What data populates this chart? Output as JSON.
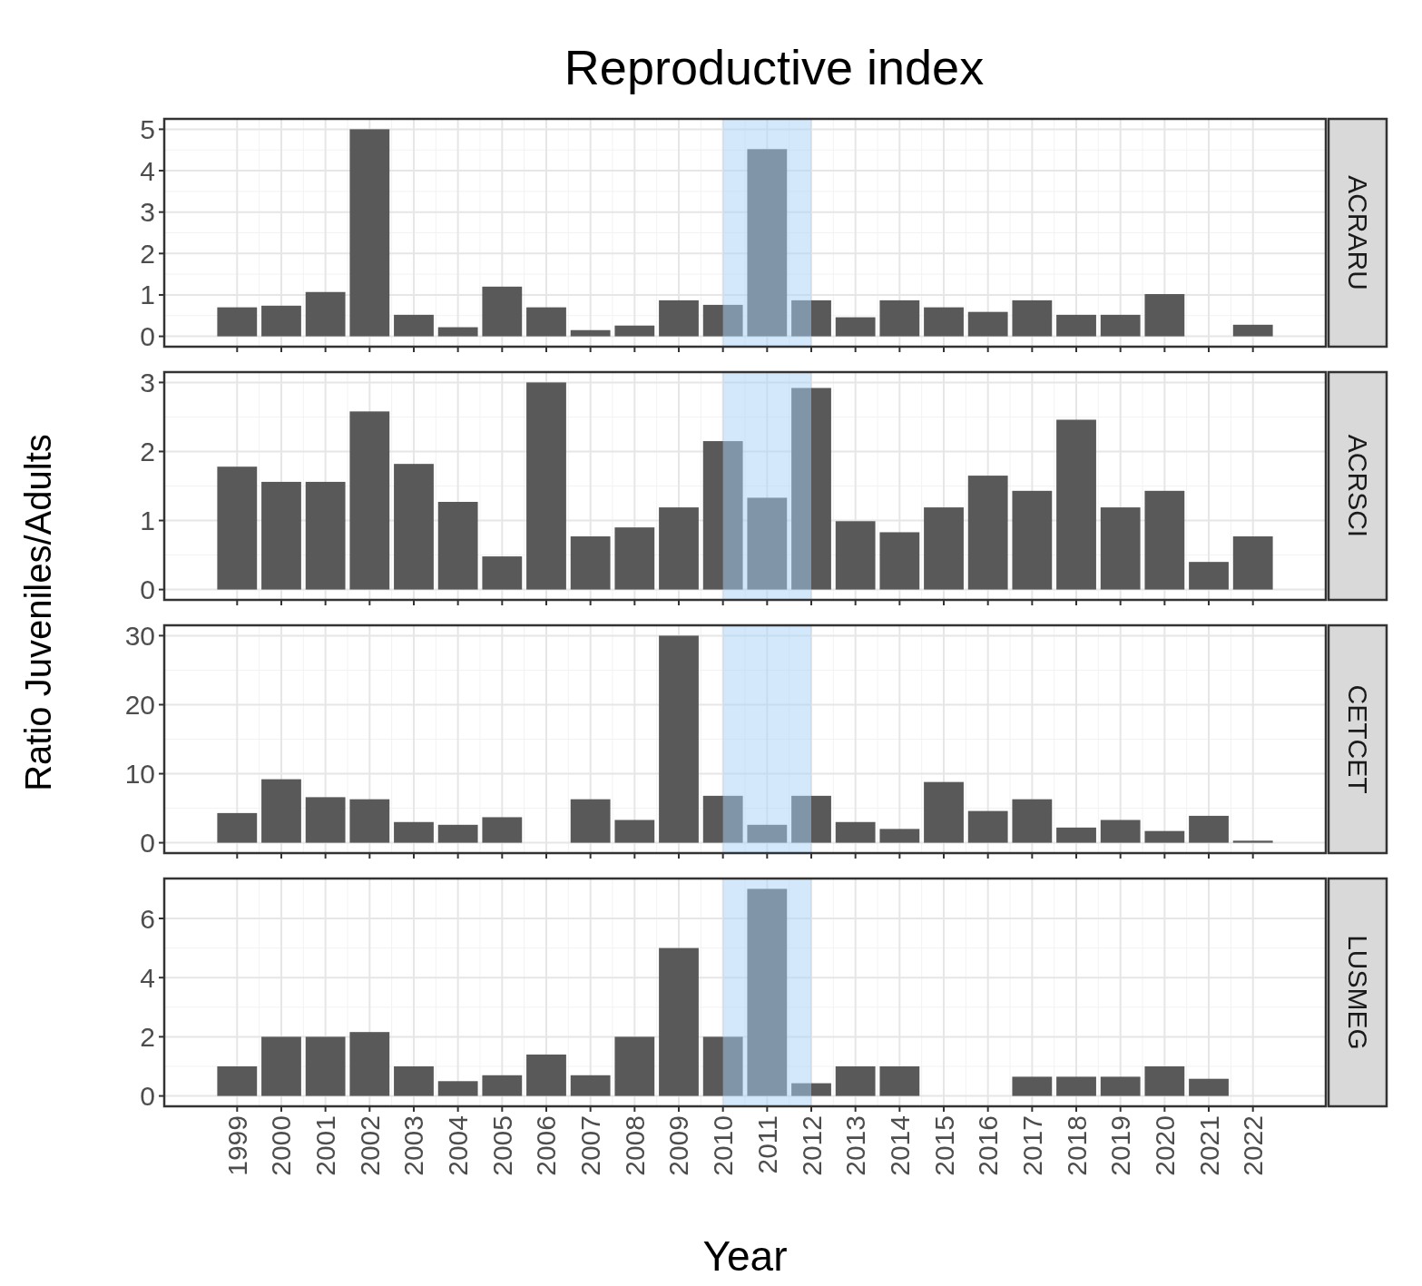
{
  "chart_data": [
    {
      "type": "bar",
      "title": "Reproductive index",
      "y2label": "ACRARU",
      "ylabel": "Ratio Juveniles/Adults",
      "x": [
        1999,
        2000,
        2001,
        2002,
        2003,
        2004,
        2005,
        2006,
        2007,
        2008,
        2009,
        2010,
        2011,
        2012,
        2013,
        2014,
        2015,
        2016,
        2017,
        2018,
        2019,
        2020,
        2022
      ],
      "values": [
        0.7,
        0.74,
        1.07,
        5.0,
        0.52,
        0.22,
        1.2,
        0.7,
        0.15,
        0.26,
        0.87,
        0.76,
        4.52,
        0.87,
        0.46,
        0.87,
        0.7,
        0.59,
        0.87,
        0.52,
        0.52,
        1.02,
        0.28
      ],
      "color": "#595959",
      "xlim": [
        1997.35,
        2023.65
      ],
      "xticks": [
        1999,
        2000,
        2001,
        2002,
        2003,
        2004,
        2005,
        2006,
        2007,
        2008,
        2009,
        2010,
        2011,
        2012,
        2013,
        2014,
        2015,
        2016,
        2017,
        2018,
        2019,
        2020,
        2021,
        2022
      ],
      "ylim": [
        -0.25,
        5.25
      ],
      "yticks": [
        0,
        1,
        2,
        3,
        4,
        5
      ],
      "grid": true,
      "tick_labels": "y",
      "bands": [
        {
          "axis": "x",
          "from": 2010,
          "to": 2012,
          "color": "#a9d1f7"
        }
      ]
    },
    {
      "type": "bar",
      "y2label": "ACRSCI",
      "x": [
        1999,
        2000,
        2001,
        2002,
        2003,
        2004,
        2005,
        2006,
        2007,
        2008,
        2009,
        2010,
        2011,
        2012,
        2013,
        2014,
        2015,
        2016,
        2017,
        2018,
        2019,
        2020,
        2021,
        2022
      ],
      "values": [
        1.78,
        1.56,
        1.56,
        2.58,
        1.82,
        1.27,
        0.48,
        3.0,
        0.77,
        0.9,
        1.19,
        2.15,
        1.33,
        2.92,
        0.99,
        0.83,
        1.19,
        1.65,
        1.43,
        2.46,
        1.19,
        1.43,
        0.4,
        0.77
      ],
      "color": "#595959",
      "xlim": [
        1997.35,
        2023.65
      ],
      "xticks": [
        1999,
        2000,
        2001,
        2002,
        2003,
        2004,
        2005,
        2006,
        2007,
        2008,
        2009,
        2010,
        2011,
        2012,
        2013,
        2014,
        2015,
        2016,
        2017,
        2018,
        2019,
        2020,
        2021,
        2022
      ],
      "ylim": [
        -0.15,
        3.15
      ],
      "yticks": [
        0,
        1,
        2,
        3
      ],
      "grid": true,
      "tick_labels": "y",
      "bands": [
        {
          "axis": "x",
          "from": 2010,
          "to": 2012,
          "color": "#a9d1f7"
        }
      ]
    },
    {
      "type": "bar",
      "y2label": "CETCET",
      "x": [
        1999,
        2000,
        2001,
        2002,
        2003,
        2004,
        2005,
        2007,
        2008,
        2009,
        2010,
        2011,
        2012,
        2013,
        2014,
        2015,
        2016,
        2017,
        2018,
        2019,
        2020,
        2021,
        2022
      ],
      "values": [
        4.3,
        9.2,
        6.6,
        6.3,
        3.0,
        2.6,
        3.7,
        6.3,
        3.3,
        30,
        6.8,
        2.6,
        6.8,
        3.0,
        2.0,
        8.8,
        4.6,
        6.3,
        2.2,
        3.3,
        1.7,
        3.9,
        0.3
      ],
      "color": "#595959",
      "xlim": [
        1997.35,
        2023.65
      ],
      "xticks": [
        1999,
        2000,
        2001,
        2002,
        2003,
        2004,
        2005,
        2006,
        2007,
        2008,
        2009,
        2010,
        2011,
        2012,
        2013,
        2014,
        2015,
        2016,
        2017,
        2018,
        2019,
        2020,
        2021,
        2022
      ],
      "ylim": [
        -1.5,
        31.5
      ],
      "yticks": [
        0,
        10,
        20,
        30
      ],
      "grid": true,
      "tick_labels": "y",
      "bands": [
        {
          "axis": "x",
          "from": 2010,
          "to": 2012,
          "color": "#a9d1f7"
        }
      ]
    },
    {
      "type": "bar",
      "y2label": "LUSMEG",
      "xlabel": "Year",
      "x": [
        1999,
        2000,
        2001,
        2002,
        2003,
        2004,
        2005,
        2006,
        2007,
        2008,
        2009,
        2010,
        2011,
        2012,
        2013,
        2014,
        2017,
        2018,
        2019,
        2020,
        2021
      ],
      "values": [
        1.0,
        2.0,
        2.0,
        2.16,
        1.0,
        0.5,
        0.7,
        1.4,
        0.7,
        2.0,
        5.0,
        2.0,
        7.0,
        0.43,
        1.0,
        1.0,
        0.65,
        0.65,
        0.65,
        1.0,
        0.58
      ],
      "color": "#595959",
      "xlim": [
        1997.35,
        2023.65
      ],
      "xticks": [
        1999,
        2000,
        2001,
        2002,
        2003,
        2004,
        2005,
        2006,
        2007,
        2008,
        2009,
        2010,
        2011,
        2012,
        2013,
        2014,
        2015,
        2016,
        2017,
        2018,
        2019,
        2020,
        2021,
        2022
      ],
      "ylim": [
        -0.35,
        7.35
      ],
      "yticks": [
        0,
        2,
        4,
        6
      ],
      "grid": true,
      "bands": [
        {
          "axis": "x",
          "from": 2010,
          "to": 2012,
          "color": "#a9d1f7"
        }
      ]
    }
  ]
}
